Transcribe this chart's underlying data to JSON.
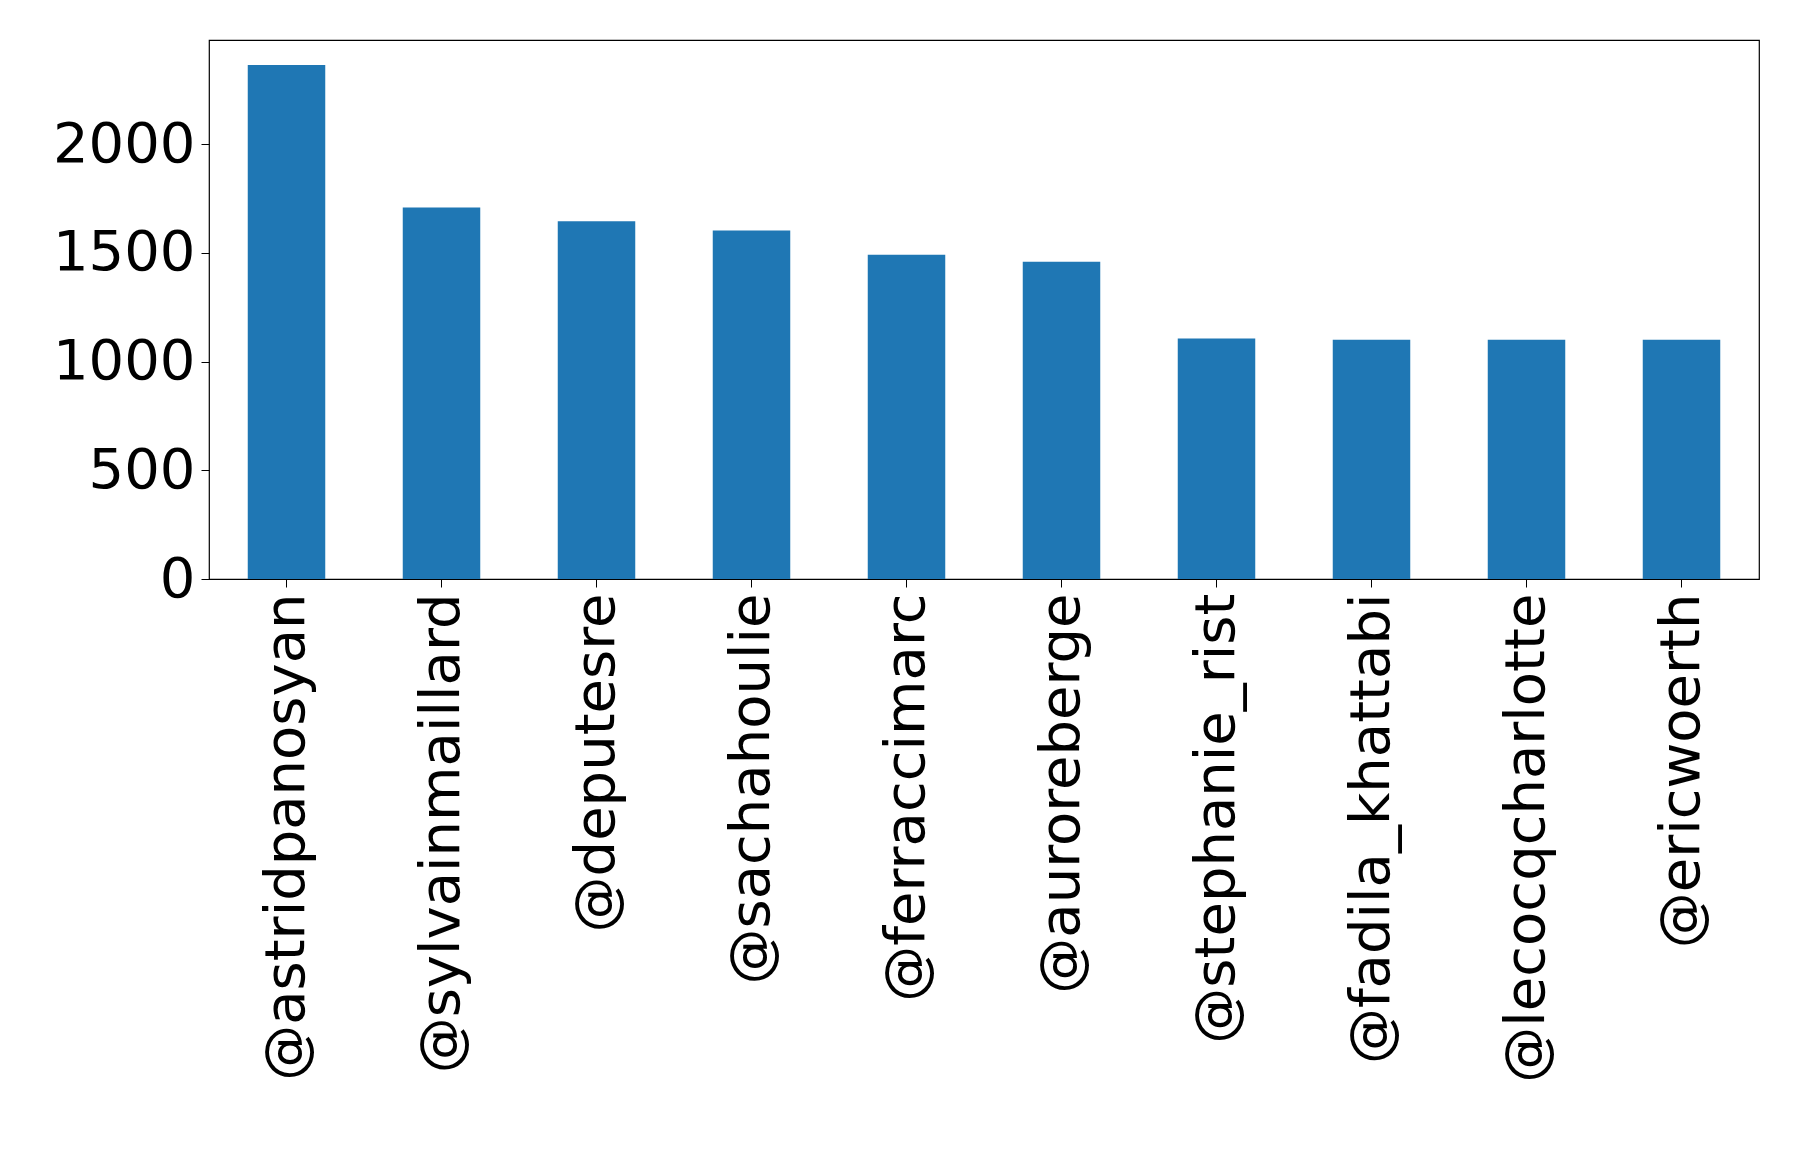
{
  "chart_data": {
    "type": "bar",
    "categories": [
      "@astridpanosyan",
      "@sylvainmaillard",
      "@deputesre",
      "@sachahoulie",
      "@ferraccimarc",
      "@auroreberge",
      "@stephanie_rist",
      "@fadila_khattabi",
      "@lecocqcharlotte",
      "@ericwoerth"
    ],
    "values": [
      2365,
      1709,
      1646,
      1603,
      1492,
      1460,
      1106,
      1101,
      1101,
      1101
    ],
    "color": "#1f77b4",
    "ylim": [
      0,
      2480
    ],
    "yticks": [
      0,
      500,
      1000,
      1500,
      2000
    ],
    "grid": false
  }
}
